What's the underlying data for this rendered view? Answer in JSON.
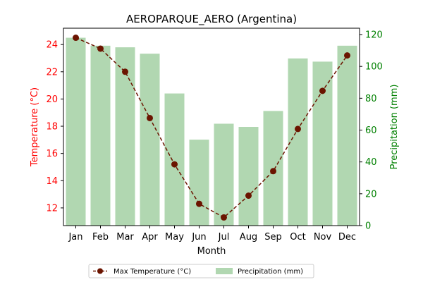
{
  "chart_data": {
    "type": "bar+line",
    "title": "AEROPARQUE_AERO (Argentina)",
    "xlabel": "Month",
    "ylabel_left": "Temperature (°C)",
    "ylabel_right": "Precipitation (mm)",
    "categories": [
      "Jan",
      "Feb",
      "Mar",
      "Apr",
      "May",
      "Jun",
      "Jul",
      "Aug",
      "Sep",
      "Oct",
      "Nov",
      "Dec"
    ],
    "ylim_left": [
      10.7,
      25.2
    ],
    "ylim_right": [
      0,
      124
    ],
    "left_ticks": [
      12,
      14,
      16,
      18,
      20,
      22,
      24
    ],
    "right_ticks": [
      0,
      20,
      40,
      60,
      80,
      100,
      120
    ],
    "series": [
      {
        "name": "Max Temperature (°C)",
        "type": "line",
        "axis": "left",
        "values": [
          24.5,
          23.7,
          22.0,
          18.6,
          15.2,
          12.3,
          11.3,
          12.9,
          14.7,
          17.8,
          20.6,
          23.2
        ],
        "color": "#6b1400",
        "style": "dashed",
        "marker": "circle"
      },
      {
        "name": "Precipitation (mm)",
        "type": "bar",
        "axis": "right",
        "values": [
          118,
          113,
          112,
          108,
          83,
          54,
          64,
          62,
          72,
          105,
          103,
          113
        ],
        "color": "#b1d7b1"
      }
    ],
    "left_axis_color": "#ff0000",
    "right_axis_color": "#008000",
    "legend_position": "bottom-center",
    "grid": false
  }
}
